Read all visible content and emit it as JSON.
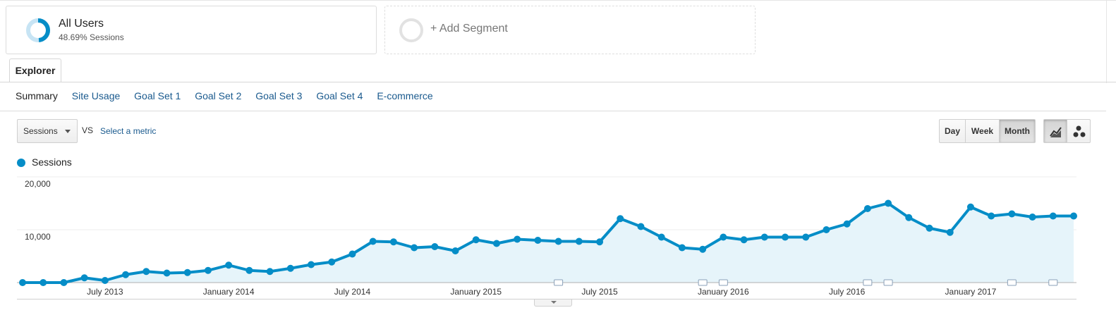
{
  "segment": {
    "title": "All Users",
    "subtitle": "48.69% Sessions",
    "donut_percent": 48.69,
    "add_label": "+ Add Segment"
  },
  "explorer_tab": {
    "label": "Explorer"
  },
  "subtabs": [
    "Summary",
    "Site Usage",
    "Goal Set 1",
    "Goal Set 2",
    "Goal Set 3",
    "Goal Set 4",
    "E-commerce"
  ],
  "controls": {
    "metric": "Sessions",
    "vs": "VS",
    "select_metric": "Select a metric",
    "periods": [
      "Day",
      "Week",
      "Month"
    ],
    "selected_period": "Month",
    "views": [
      "line-chart-icon",
      "motion-chart-icon"
    ]
  },
  "colors": {
    "line": "#058dc7",
    "fill": "#e6f4fa",
    "link": "#1a5a8e"
  },
  "chart_data": {
    "type": "line",
    "series": [
      {
        "name": "Sessions",
        "x": [
          "2013-03",
          "2013-04",
          "2013-05",
          "2013-06",
          "2013-07",
          "2013-08",
          "2013-09",
          "2013-10",
          "2013-11",
          "2013-12",
          "2014-01",
          "2014-02",
          "2014-03",
          "2014-04",
          "2014-05",
          "2014-06",
          "2014-07",
          "2014-08",
          "2014-09",
          "2014-10",
          "2014-11",
          "2014-12",
          "2015-01",
          "2015-02",
          "2015-03",
          "2015-04",
          "2015-05",
          "2015-06",
          "2015-07",
          "2015-08",
          "2015-09",
          "2015-10",
          "2015-11",
          "2015-12",
          "2016-01",
          "2016-02",
          "2016-03",
          "2016-04",
          "2016-05",
          "2016-06",
          "2016-07",
          "2016-08",
          "2016-09",
          "2016-10",
          "2016-11",
          "2016-12",
          "2017-01",
          "2017-02",
          "2017-03",
          "2017-04",
          "2017-05",
          "2017-06"
        ],
        "values": [
          0,
          0,
          0,
          900,
          400,
          1500,
          2100,
          1800,
          1900,
          2300,
          3300,
          2300,
          2100,
          2700,
          3400,
          3900,
          5400,
          7800,
          7700,
          6600,
          6800,
          6000,
          8100,
          7400,
          8200,
          8000,
          7800,
          7800,
          7700,
          12100,
          10600,
          8600,
          6600,
          6300,
          8600,
          8100,
          8600,
          8600,
          8600,
          10000,
          11100,
          14000,
          15000,
          12300,
          10300,
          9500,
          14300,
          12600,
          13000,
          12400,
          12600,
          12600
        ]
      }
    ],
    "y_ticks": [
      "20,000",
      "10,000"
    ],
    "ylim": [
      0,
      20000
    ],
    "x_ticks": [
      {
        "label": "July 2013",
        "index": 4
      },
      {
        "label": "January 2014",
        "index": 10
      },
      {
        "label": "July 2014",
        "index": 16
      },
      {
        "label": "January 2015",
        "index": 22
      },
      {
        "label": "July 2015",
        "index": 28
      },
      {
        "label": "January 2016",
        "index": 34
      },
      {
        "label": "July 2016",
        "index": 40
      },
      {
        "label": "January 2017",
        "index": 46
      }
    ],
    "annotation_indices": [
      26,
      33,
      34,
      41,
      42,
      48,
      50
    ],
    "grid": true,
    "legend": "top-left"
  }
}
